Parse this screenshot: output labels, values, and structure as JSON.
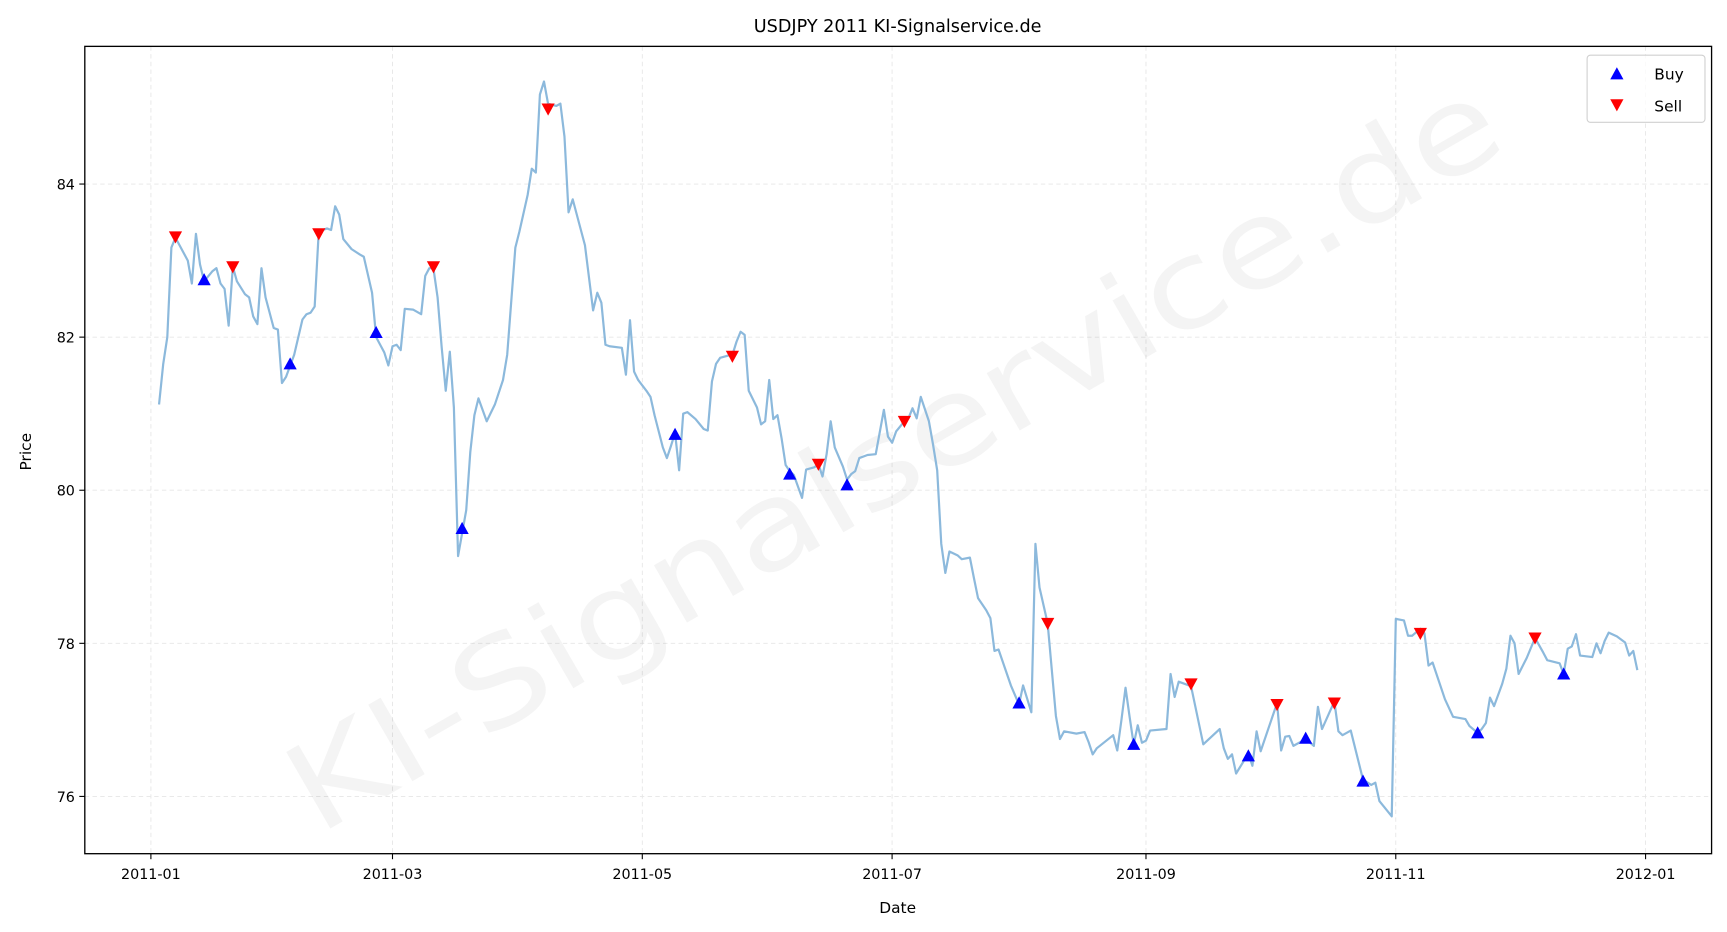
{
  "chart_data": {
    "type": "line",
    "title": "USDJPY 2011 KI-Signalservice.de",
    "xlabel": "Date",
    "ylabel": "Price",
    "watermark": "KI-Signalservice.de",
    "x_unit": "days since 2011-01-01",
    "xlim": [
      -17,
      380
    ],
    "ylim": [
      75.3,
      85.85
    ],
    "grid": true,
    "x_ticks": [
      {
        "day": 0,
        "label": "2011-01"
      },
      {
        "day": 59,
        "label": "2011-03"
      },
      {
        "day": 120,
        "label": "2011-05"
      },
      {
        "day": 181,
        "label": "2011-07"
      },
      {
        "day": 243,
        "label": "2011-09"
      },
      {
        "day": 304,
        "label": "2011-11"
      },
      {
        "day": 365,
        "label": "2012-01"
      }
    ],
    "y_ticks": [
      76,
      78,
      80,
      82,
      84
    ],
    "legend": {
      "position": "top-right",
      "entries": [
        {
          "label": "Buy",
          "color": "#0000ff",
          "marker": "triangle-up"
        },
        {
          "label": "Sell",
          "color": "#ff0000",
          "marker": "triangle-down"
        }
      ]
    },
    "line_color": "#8cb9dc",
    "series": [
      {
        "name": "USDJPY",
        "points": [
          [
            2,
            81.12
          ],
          [
            3,
            81.65
          ],
          [
            4,
            82.0
          ],
          [
            5,
            83.17
          ],
          [
            6,
            83.3
          ],
          [
            7,
            83.2
          ],
          [
            9,
            83.0
          ],
          [
            10,
            82.7
          ],
          [
            11,
            83.35
          ],
          [
            12,
            82.95
          ],
          [
            13,
            82.73
          ],
          [
            15,
            82.86
          ],
          [
            16,
            82.9
          ],
          [
            17,
            82.7
          ],
          [
            18,
            82.63
          ],
          [
            19,
            82.15
          ],
          [
            20,
            82.92
          ],
          [
            21,
            82.73
          ],
          [
            23,
            82.56
          ],
          [
            24,
            82.52
          ],
          [
            25,
            82.27
          ],
          [
            26,
            82.17
          ],
          [
            27,
            82.9
          ],
          [
            28,
            82.52
          ],
          [
            30,
            82.12
          ],
          [
            31,
            82.1
          ],
          [
            32,
            81.4
          ],
          [
            33,
            81.48
          ],
          [
            35,
            81.77
          ],
          [
            37,
            82.23
          ],
          [
            38,
            82.3
          ],
          [
            39,
            82.32
          ],
          [
            40,
            82.4
          ],
          [
            41,
            83.38
          ],
          [
            43,
            83.42
          ],
          [
            44,
            83.4
          ],
          [
            45,
            83.71
          ],
          [
            46,
            83.6
          ],
          [
            47,
            83.28
          ],
          [
            49,
            83.15
          ],
          [
            51,
            83.08
          ],
          [
            52,
            83.05
          ],
          [
            54,
            82.58
          ],
          [
            55,
            82.0
          ],
          [
            57,
            81.8
          ],
          [
            58,
            81.63
          ],
          [
            59,
            81.88
          ],
          [
            60,
            81.9
          ],
          [
            61,
            81.83
          ],
          [
            62,
            82.37
          ],
          [
            64,
            82.36
          ],
          [
            66,
            82.3
          ],
          [
            67,
            82.8
          ],
          [
            68,
            82.9
          ],
          [
            69,
            82.9
          ],
          [
            70,
            82.52
          ],
          [
            71,
            81.87
          ],
          [
            72,
            81.3
          ],
          [
            73,
            81.81
          ],
          [
            74,
            81.08
          ],
          [
            75,
            79.14
          ],
          [
            77,
            79.74
          ],
          [
            78,
            80.5
          ],
          [
            79,
            80.98
          ],
          [
            80,
            81.2
          ],
          [
            82,
            80.9
          ],
          [
            84,
            81.12
          ],
          [
            86,
            81.44
          ],
          [
            87,
            81.77
          ],
          [
            89,
            83.17
          ],
          [
            90,
            83.38
          ],
          [
            92,
            83.86
          ],
          [
            93,
            84.2
          ],
          [
            94,
            84.15
          ],
          [
            95,
            85.17
          ],
          [
            96,
            85.34
          ],
          [
            97,
            85.05
          ],
          [
            99,
            85.02
          ],
          [
            100,
            85.05
          ],
          [
            101,
            84.62
          ],
          [
            102,
            83.63
          ],
          [
            103,
            83.8
          ],
          [
            106,
            83.2
          ],
          [
            108,
            82.35
          ],
          [
            109,
            82.58
          ],
          [
            110,
            82.45
          ],
          [
            111,
            81.9
          ],
          [
            112,
            81.88
          ],
          [
            115,
            81.86
          ],
          [
            116,
            81.51
          ],
          [
            117,
            82.22
          ],
          [
            118,
            81.55
          ],
          [
            119,
            81.44
          ],
          [
            121,
            81.3
          ],
          [
            122,
            81.22
          ],
          [
            123,
            80.98
          ],
          [
            125,
            80.56
          ],
          [
            126,
            80.42
          ],
          [
            127,
            80.58
          ],
          [
            128,
            80.75
          ],
          [
            129,
            80.26
          ],
          [
            130,
            81.0
          ],
          [
            131,
            81.02
          ],
          [
            133,
            80.93
          ],
          [
            135,
            80.8
          ],
          [
            136,
            80.78
          ],
          [
            137,
            81.42
          ],
          [
            138,
            81.65
          ],
          [
            139,
            81.73
          ],
          [
            141,
            81.76
          ],
          [
            142,
            81.77
          ],
          [
            143,
            81.94
          ],
          [
            144,
            82.07
          ],
          [
            145,
            82.03
          ],
          [
            146,
            81.3
          ],
          [
            148,
            81.08
          ],
          [
            149,
            80.86
          ],
          [
            150,
            80.9
          ],
          [
            151,
            81.44
          ],
          [
            152,
            80.93
          ],
          [
            153,
            80.98
          ],
          [
            154,
            80.68
          ],
          [
            155,
            80.33
          ],
          [
            156,
            80.25
          ],
          [
            157,
            80.2
          ],
          [
            159,
            79.9
          ],
          [
            160,
            80.27
          ],
          [
            162,
            80.3
          ],
          [
            163,
            80.34
          ],
          [
            164,
            80.18
          ],
          [
            165,
            80.47
          ],
          [
            166,
            80.9
          ],
          [
            167,
            80.56
          ],
          [
            169,
            80.31
          ],
          [
            170,
            80.14
          ],
          [
            171,
            80.21
          ],
          [
            172,
            80.25
          ],
          [
            173,
            80.42
          ],
          [
            175,
            80.46
          ],
          [
            177,
            80.47
          ],
          [
            179,
            81.05
          ],
          [
            180,
            80.7
          ],
          [
            181,
            80.62
          ],
          [
            182,
            80.77
          ],
          [
            184,
            80.9
          ],
          [
            185,
            80.94
          ],
          [
            186,
            81.07
          ],
          [
            187,
            80.94
          ],
          [
            188,
            81.22
          ],
          [
            190,
            80.9
          ],
          [
            191,
            80.6
          ],
          [
            192,
            80.26
          ],
          [
            193,
            79.3
          ],
          [
            194,
            78.92
          ],
          [
            195,
            79.2
          ],
          [
            197,
            79.15
          ],
          [
            198,
            79.1
          ],
          [
            200,
            79.12
          ],
          [
            201,
            78.85
          ],
          [
            202,
            78.59
          ],
          [
            204,
            78.43
          ],
          [
            205,
            78.33
          ],
          [
            206,
            77.9
          ],
          [
            207,
            77.92
          ],
          [
            210,
            77.45
          ],
          [
            212,
            77.2
          ],
          [
            213,
            77.45
          ],
          [
            215,
            77.1
          ],
          [
            216,
            79.3
          ],
          [
            217,
            78.73
          ],
          [
            219,
            78.26
          ],
          [
            221,
            77.05
          ],
          [
            222,
            76.75
          ],
          [
            223,
            76.85
          ],
          [
            226,
            76.82
          ],
          [
            228,
            76.84
          ],
          [
            229,
            76.71
          ],
          [
            230,
            76.55
          ],
          [
            231,
            76.63
          ],
          [
            235,
            76.8
          ],
          [
            236,
            76.6
          ],
          [
            237,
            77.0
          ],
          [
            238,
            77.42
          ],
          [
            239,
            77.04
          ],
          [
            240,
            76.68
          ],
          [
            241,
            76.93
          ],
          [
            242,
            76.7
          ],
          [
            243,
            76.73
          ],
          [
            244,
            76.86
          ],
          [
            248,
            76.88
          ],
          [
            249,
            77.6
          ],
          [
            250,
            77.3
          ],
          [
            251,
            77.5
          ],
          [
            254,
            77.44
          ],
          [
            257,
            76.68
          ],
          [
            261,
            76.88
          ],
          [
            262,
            76.63
          ],
          [
            263,
            76.49
          ],
          [
            264,
            76.55
          ],
          [
            265,
            76.3
          ],
          [
            268,
            76.56
          ],
          [
            269,
            76.4
          ],
          [
            270,
            76.85
          ],
          [
            271,
            76.59
          ],
          [
            275,
            77.22
          ],
          [
            276,
            76.6
          ],
          [
            277,
            76.78
          ],
          [
            278,
            76.79
          ],
          [
            279,
            76.66
          ],
          [
            282,
            76.75
          ],
          [
            284,
            76.66
          ],
          [
            285,
            77.17
          ],
          [
            286,
            76.88
          ],
          [
            289,
            77.24
          ],
          [
            290,
            76.85
          ],
          [
            291,
            76.8
          ],
          [
            293,
            76.86
          ],
          [
            296,
            76.22
          ],
          [
            298,
            76.15
          ],
          [
            299,
            76.18
          ],
          [
            300,
            75.94
          ],
          [
            303,
            75.74
          ],
          [
            304,
            78.32
          ],
          [
            306,
            78.3
          ],
          [
            307,
            78.1
          ],
          [
            308,
            78.1
          ],
          [
            310,
            78.19
          ],
          [
            311,
            78.13
          ],
          [
            312,
            77.71
          ],
          [
            313,
            77.75
          ],
          [
            316,
            77.27
          ],
          [
            318,
            77.04
          ],
          [
            321,
            77.01
          ],
          [
            322,
            76.92
          ],
          [
            324,
            76.83
          ],
          [
            325,
            76.88
          ],
          [
            326,
            76.96
          ],
          [
            327,
            77.29
          ],
          [
            328,
            77.18
          ],
          [
            330,
            77.47
          ],
          [
            331,
            77.67
          ],
          [
            332,
            78.1
          ],
          [
            333,
            78.0
          ],
          [
            334,
            77.6
          ],
          [
            336,
            77.81
          ],
          [
            338,
            78.07
          ],
          [
            340,
            77.88
          ],
          [
            341,
            77.78
          ],
          [
            344,
            77.74
          ],
          [
            345,
            77.6
          ],
          [
            346,
            77.93
          ],
          [
            347,
            77.96
          ],
          [
            348,
            78.12
          ],
          [
            349,
            77.84
          ],
          [
            352,
            77.82
          ],
          [
            353,
            78.0
          ],
          [
            354,
            77.87
          ],
          [
            355,
            78.03
          ],
          [
            356,
            78.14
          ],
          [
            358,
            78.09
          ],
          [
            360,
            78.01
          ],
          [
            361,
            77.84
          ],
          [
            362,
            77.9
          ],
          [
            363,
            77.65
          ]
        ]
      }
    ],
    "buy_signals": [
      [
        13,
        82.75
      ],
      [
        34,
        81.65
      ],
      [
        55,
        82.06
      ],
      [
        76,
        79.5
      ],
      [
        128,
        80.73
      ],
      [
        156,
        80.21
      ],
      [
        170,
        80.07
      ],
      [
        212,
        77.22
      ],
      [
        240,
        76.68
      ],
      [
        268,
        76.53
      ],
      [
        282,
        76.76
      ],
      [
        296,
        76.2
      ],
      [
        324,
        76.83
      ],
      [
        345,
        77.6
      ]
    ],
    "sell_signals": [
      [
        6,
        83.31
      ],
      [
        20,
        82.92
      ],
      [
        41,
        83.35
      ],
      [
        69,
        82.92
      ],
      [
        97,
        84.98
      ],
      [
        142,
        81.75
      ],
      [
        163,
        80.34
      ],
      [
        184,
        80.9
      ],
      [
        219,
        78.26
      ],
      [
        254,
        77.47
      ],
      [
        275,
        77.2
      ],
      [
        289,
        77.22
      ],
      [
        310,
        78.13
      ],
      [
        338,
        78.07
      ]
    ]
  }
}
